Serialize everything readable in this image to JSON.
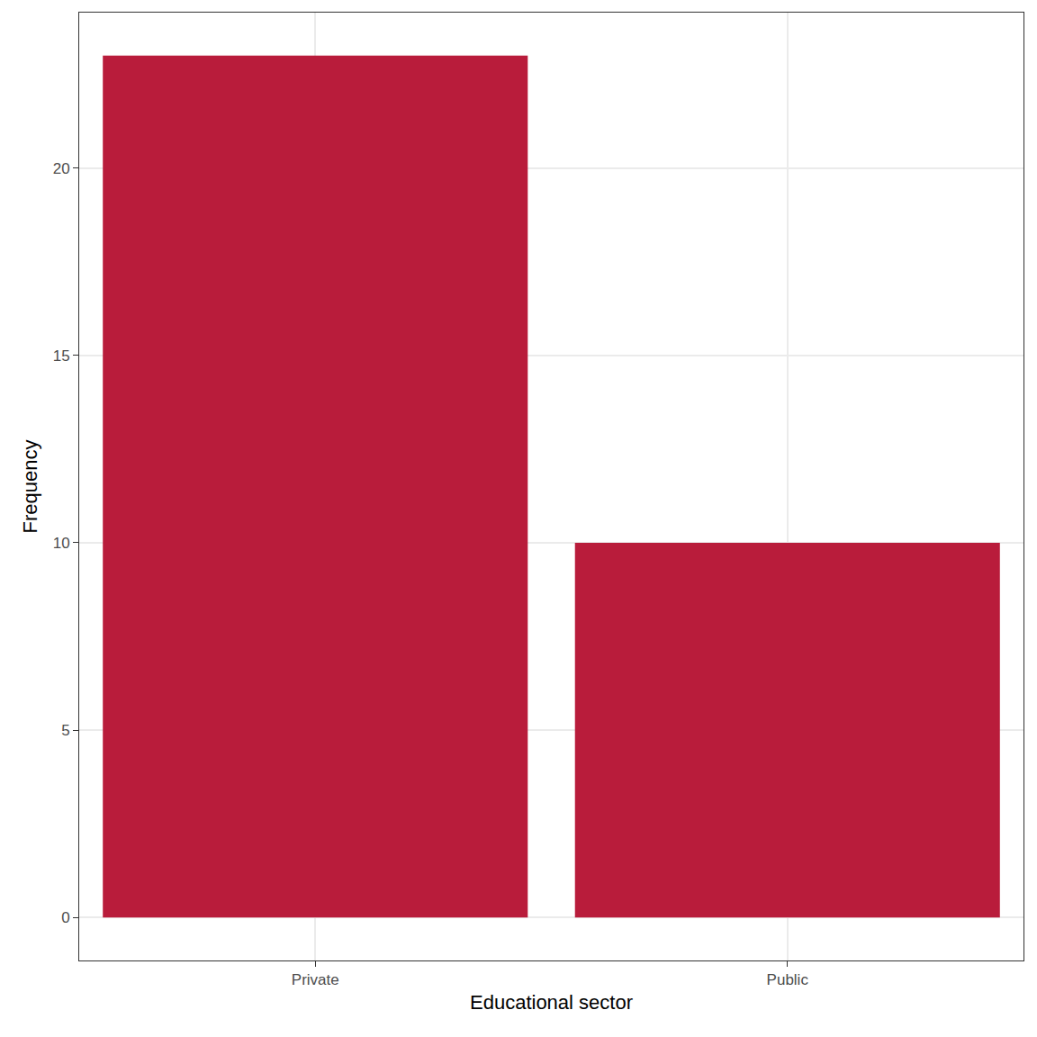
{
  "chart_data": {
    "type": "bar",
    "x_label": "Educational sector",
    "y_label": "Frequency",
    "categories": [
      "Private",
      "Public"
    ],
    "values": [
      23,
      10
    ],
    "color": "#b91c3b",
    "ylim": [
      -1.15,
      24.15
    ],
    "yticks": [
      0,
      5,
      10,
      15,
      20
    ],
    "grid": true
  }
}
